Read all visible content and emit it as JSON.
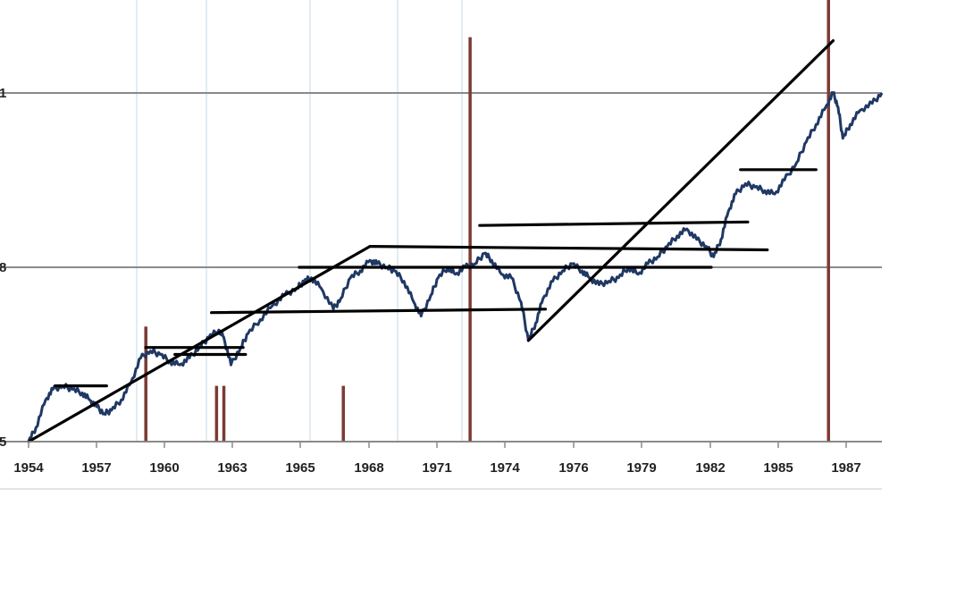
{
  "chart_data": {
    "type": "line",
    "title": "",
    "xlabel": "",
    "ylabel": "",
    "x_tick_labels": [
      "1954",
      "1957",
      "1960",
      "1963",
      "1965",
      "1968",
      "1971",
      "1974",
      "1976",
      "1979",
      "1982",
      "1985",
      "1987"
    ],
    "y_tick_labels": [
      "5",
      "8",
      "1"
    ],
    "xlim": [
      1954,
      1989
    ],
    "grid": "horizontal",
    "colors": {
      "line": "#1f3864",
      "bars": "#7b3b33",
      "annotations": "#000000",
      "grid": "#8a8a8a"
    },
    "series": [
      {
        "values": [
          [
            1954.0,
            0.0
          ],
          [
            1954.3,
            0.04
          ],
          [
            1954.7,
            0.12
          ],
          [
            1955.0,
            0.15
          ],
          [
            1955.4,
            0.16
          ],
          [
            1955.8,
            0.15
          ],
          [
            1956.2,
            0.14
          ],
          [
            1956.5,
            0.12
          ],
          [
            1956.8,
            0.1
          ],
          [
            1957.1,
            0.08
          ],
          [
            1957.4,
            0.09
          ],
          [
            1957.8,
            0.12
          ],
          [
            1958.2,
            0.17
          ],
          [
            1958.6,
            0.24
          ],
          [
            1959.0,
            0.26
          ],
          [
            1959.4,
            0.25
          ],
          [
            1959.8,
            0.23
          ],
          [
            1960.2,
            0.22
          ],
          [
            1960.6,
            0.24
          ],
          [
            1961.0,
            0.27
          ],
          [
            1961.4,
            0.3
          ],
          [
            1961.8,
            0.32
          ],
          [
            1962.0,
            0.3
          ],
          [
            1962.3,
            0.22
          ],
          [
            1962.7,
            0.27
          ],
          [
            1963.0,
            0.31
          ],
          [
            1963.5,
            0.35
          ],
          [
            1964.0,
            0.39
          ],
          [
            1964.5,
            0.42
          ],
          [
            1965.0,
            0.44
          ],
          [
            1965.3,
            0.46
          ],
          [
            1965.6,
            0.47
          ],
          [
            1966.0,
            0.44
          ],
          [
            1966.5,
            0.38
          ],
          [
            1966.8,
            0.41
          ],
          [
            1967.2,
            0.47
          ],
          [
            1967.6,
            0.49
          ],
          [
            1968.0,
            0.52
          ],
          [
            1968.3,
            0.51
          ],
          [
            1968.7,
            0.5
          ],
          [
            1969.0,
            0.49
          ],
          [
            1969.4,
            0.46
          ],
          [
            1969.8,
            0.4
          ],
          [
            1970.1,
            0.36
          ],
          [
            1970.5,
            0.42
          ],
          [
            1970.8,
            0.47
          ],
          [
            1971.2,
            0.5
          ],
          [
            1971.5,
            0.48
          ],
          [
            1971.9,
            0.5
          ],
          [
            1972.3,
            0.51
          ],
          [
            1972.7,
            0.54
          ],
          [
            1973.0,
            0.52
          ],
          [
            1973.4,
            0.48
          ],
          [
            1973.8,
            0.47
          ],
          [
            1974.2,
            0.4
          ],
          [
            1974.5,
            0.29
          ],
          [
            1974.8,
            0.34
          ],
          [
            1975.1,
            0.41
          ],
          [
            1975.5,
            0.46
          ],
          [
            1975.9,
            0.49
          ],
          [
            1976.3,
            0.51
          ],
          [
            1976.7,
            0.49
          ],
          [
            1977.0,
            0.47
          ],
          [
            1977.4,
            0.45
          ],
          [
            1977.8,
            0.46
          ],
          [
            1978.2,
            0.47
          ],
          [
            1978.6,
            0.5
          ],
          [
            1979.0,
            0.48
          ],
          [
            1979.4,
            0.51
          ],
          [
            1979.8,
            0.53
          ],
          [
            1980.2,
            0.56
          ],
          [
            1980.6,
            0.59
          ],
          [
            1981.0,
            0.61
          ],
          [
            1981.4,
            0.58
          ],
          [
            1981.8,
            0.56
          ],
          [
            1982.1,
            0.53
          ],
          [
            1982.4,
            0.58
          ],
          [
            1982.7,
            0.66
          ],
          [
            1983.0,
            0.71
          ],
          [
            1983.4,
            0.74
          ],
          [
            1983.8,
            0.73
          ],
          [
            1984.2,
            0.72
          ],
          [
            1984.6,
            0.71
          ],
          [
            1985.0,
            0.75
          ],
          [
            1985.5,
            0.8
          ],
          [
            1985.9,
            0.86
          ],
          [
            1986.3,
            0.91
          ],
          [
            1986.7,
            0.96
          ],
          [
            1987.0,
            1.0
          ],
          [
            1987.2,
            0.96
          ],
          [
            1987.4,
            0.87
          ],
          [
            1987.7,
            0.91
          ],
          [
            1988.1,
            0.95
          ],
          [
            1988.6,
            0.97
          ],
          [
            1989.0,
            1.0
          ]
        ]
      }
    ],
    "bars": [
      {
        "x": 1958.8,
        "height": 0.33
      },
      {
        "x": 1961.7,
        "height": 0.16
      },
      {
        "x": 1962.0,
        "height": 0.16
      },
      {
        "x": 1966.9,
        "height": 0.16
      },
      {
        "x": 1972.1,
        "height": 1.16
      },
      {
        "x": 1986.8,
        "height": 1.3
      }
    ],
    "annotation_segments": [
      [
        [
          1955.1,
          0.16
        ],
        [
          1957.2,
          0.16
        ]
      ],
      [
        [
          1958.8,
          0.27
        ],
        [
          1962.8,
          0.27
        ]
      ],
      [
        [
          1960.0,
          0.25
        ],
        [
          1962.9,
          0.25
        ]
      ],
      [
        [
          1961.5,
          0.37
        ],
        [
          1975.2,
          0.38
        ]
      ],
      [
        [
          1965.1,
          0.5
        ],
        [
          1982.0,
          0.5
        ]
      ],
      [
        [
          1968.0,
          0.56
        ],
        [
          1984.3,
          0.55
        ]
      ],
      [
        [
          1972.5,
          0.62
        ],
        [
          1983.5,
          0.63
        ]
      ],
      [
        [
          1983.2,
          0.78
        ],
        [
          1986.3,
          0.78
        ]
      ],
      [
        [
          1954.0,
          0.0
        ],
        [
          1968.0,
          0.56
        ]
      ],
      [
        [
          1974.5,
          0.29
        ],
        [
          1987.0,
          1.15
        ]
      ]
    ]
  }
}
